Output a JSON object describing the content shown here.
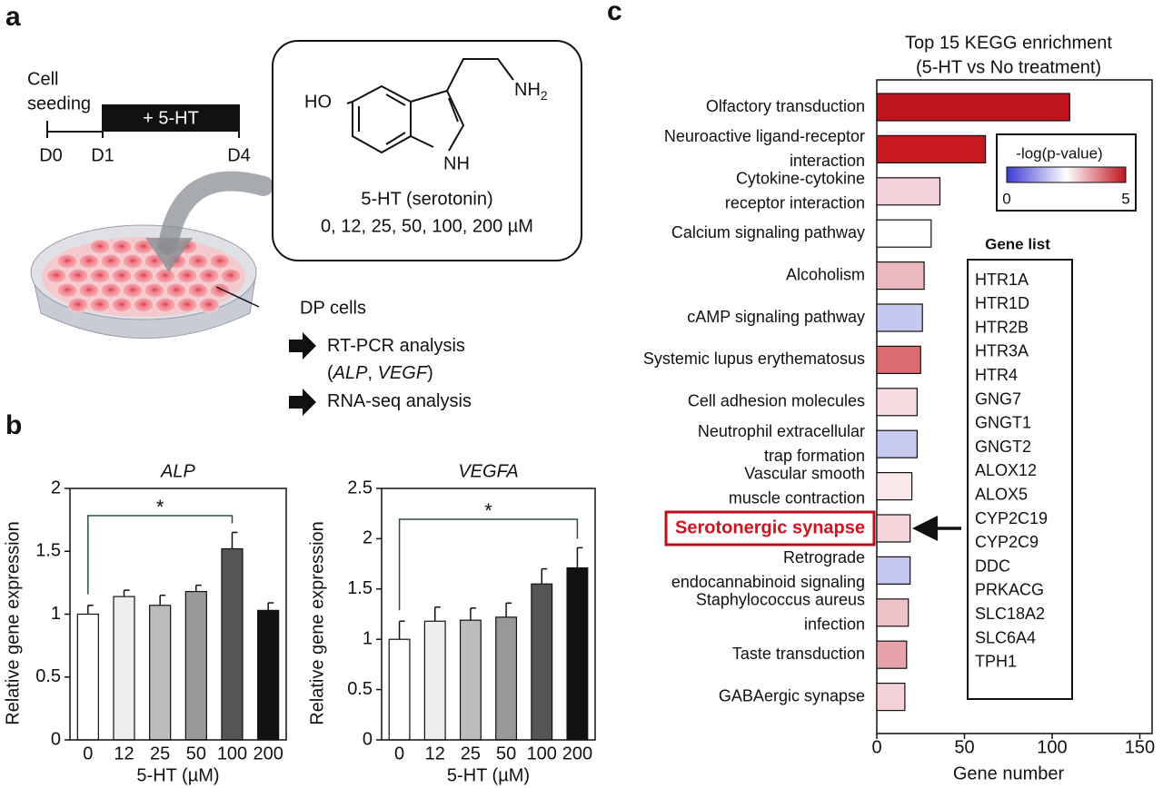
{
  "panel_labels": [
    "a",
    "b",
    "c"
  ],
  "panel_a": {
    "timeline": {
      "label": [
        "Cell",
        "seeding"
      ],
      "treatment": "+ 5-HT",
      "days": [
        "D0",
        "D1",
        "D4"
      ]
    },
    "molecule": {
      "hydroxyl": "HO",
      "amine": "NH",
      "amine_subscript": "2",
      "ring_nh": "NH",
      "name": "5-HT (serotonin)",
      "doses": "0, 12, 25, 50, 100, 200 µM"
    },
    "cells": "DP cells",
    "analyses": [
      [
        "RT-PCR analysis"
      ],
      [
        "(",
        "ALP",
        ", ",
        "VEGF",
        ")"
      ],
      [
        "RNA-seq analysis"
      ]
    ]
  },
  "chart_data": [
    {
      "type": "bar",
      "title": "ALP",
      "categories": [
        "0",
        "12",
        "25",
        "50",
        "100",
        "200"
      ],
      "values": [
        1.0,
        1.14,
        1.07,
        1.18,
        1.52,
        1.03
      ],
      "errors": [
        0.07,
        0.05,
        0.08,
        0.05,
        0.13,
        0.06
      ],
      "colors": [
        "#ffffff",
        "#eeeeee",
        "#bdbdbd",
        "#999999",
        "#555555",
        "#111111"
      ],
      "ylim": [
        0,
        2
      ],
      "yticks": [
        0,
        0.5,
        1,
        1.5,
        2
      ],
      "y_label": "Relative gene expression",
      "x_label": "5-HT (µM)",
      "annotation": "*"
    },
    {
      "type": "bar",
      "title": "VEGFA",
      "categories": [
        "0",
        "12",
        "25",
        "50",
        "100",
        "200"
      ],
      "values": [
        1.0,
        1.18,
        1.19,
        1.22,
        1.55,
        1.71
      ],
      "errors": [
        0.18,
        0.14,
        0.12,
        0.14,
        0.15,
        0.2
      ],
      "colors": [
        "#ffffff",
        "#eeeeee",
        "#bdbdbd",
        "#999999",
        "#555555",
        "#111111"
      ],
      "ylim": [
        0,
        2.5
      ],
      "yticks": [
        0,
        0.5,
        1,
        1.5,
        2,
        2.5
      ],
      "y_label": "Relative gene expression",
      "x_label": "5-HT (µM)",
      "annotation": "*"
    },
    {
      "type": "barh",
      "title": [
        "Top 15 KEGG enrichment",
        "(5-HT vs No treatment)"
      ],
      "categories": [
        [
          "Olfactory transduction"
        ],
        [
          "Neuroactive ligand-receptor",
          "interaction"
        ],
        [
          "Cytokine-cytokine",
          "receptor interaction"
        ],
        [
          "Calcium signaling pathway"
        ],
        [
          "Alcoholism"
        ],
        [
          "cAMP signaling pathway"
        ],
        [
          "Systemic lupus erythematosus"
        ],
        [
          "Cell adhesion molecules"
        ],
        [
          "Neutrophil extracellular",
          "trap formation"
        ],
        [
          "Vascular smooth",
          "muscle contraction"
        ],
        [
          "Serotonergic synapse"
        ],
        [
          "Retrograde",
          "endocannabinoid signaling"
        ],
        [
          "Staphylococcus aureus",
          "infection"
        ],
        [
          "Taste transduction"
        ],
        [
          "GABAergic synapse"
        ]
      ],
      "values": [
        110,
        62,
        36,
        31,
        27,
        26,
        25,
        23,
        23,
        20,
        19,
        19,
        18,
        17,
        16
      ],
      "colors": [
        "#c0141f",
        "#c5191f",
        "#f2d3da",
        "#ffffff",
        "#eab9bf",
        "#c6c8f0",
        "#dc6b70",
        "#f6dde2",
        "#c8caf0",
        "#fbe8ea",
        "#f4d5da",
        "#c4c6ef",
        "#eec2c7",
        "#e6a4aa",
        "#f3d3d8"
      ],
      "xlim": [
        0,
        157
      ],
      "xticks": [
        0,
        50,
        100,
        150
      ],
      "x_label": "Gene number",
      "highlight": 10,
      "colorbar": {
        "title": "-log(p-value)",
        "ticks": [
          0,
          5
        ],
        "colors": [
          "#3b3bd6",
          "#ffffff",
          "#c0141f"
        ]
      }
    }
  ],
  "gene_list": {
    "title": "Gene list",
    "genes": [
      "HTR1A",
      "HTR1D",
      "HTR2B",
      "HTR3A",
      "HTR4",
      "GNG7",
      "GNGT1",
      "GNGT2",
      "ALOX12",
      "ALOX5",
      "CYP2C19",
      "CYP2C9",
      "DDC",
      "PRKACG",
      "SLC18A2",
      "SLC6A4",
      "TPH1"
    ]
  }
}
